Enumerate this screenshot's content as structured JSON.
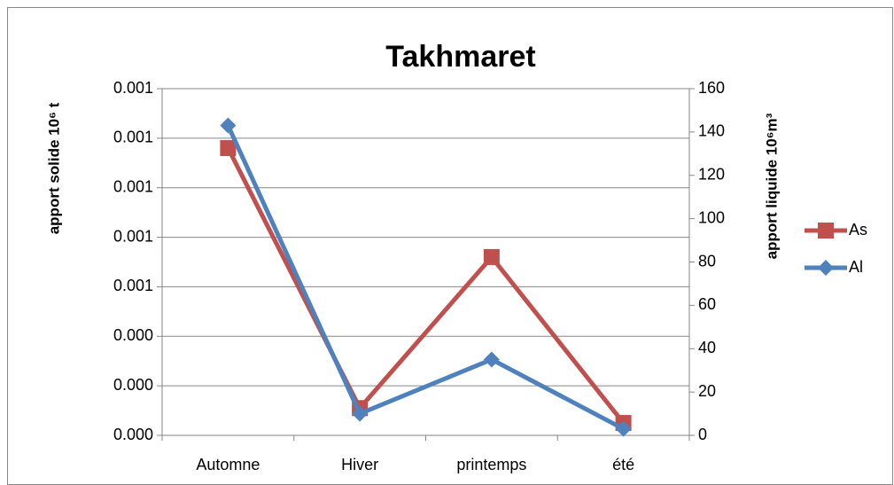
{
  "chart_data": {
    "type": "line",
    "title": "Takhmaret",
    "ylabel": "apport solide 10⁶ t",
    "y2label": "apport liquide 10⁶m³",
    "categories": [
      "Automne",
      "Hiver",
      "printemps",
      "été"
    ],
    "series": [
      {
        "name": "As",
        "color": "#c0504d",
        "marker": "square",
        "axis": "y",
        "values": [
          0.00116,
          0.00011,
          0.00072,
          5e-05
        ]
      },
      {
        "name": "Al",
        "color": "#4f81bd",
        "marker": "diamond",
        "axis": "y2",
        "values": [
          143,
          10,
          35,
          3
        ]
      }
    ],
    "ylim": [
      0,
      0.0014
    ],
    "yticks": [
      {
        "value": 0,
        "label": "0.000"
      },
      {
        "value": 0.0002,
        "label": "0.000"
      },
      {
        "value": 0.0004,
        "label": "0.000"
      },
      {
        "value": 0.0006,
        "label": "0.001"
      },
      {
        "value": 0.0008,
        "label": "0.001"
      },
      {
        "value": 0.001,
        "label": "0.001"
      },
      {
        "value": 0.0012,
        "label": "0.001"
      },
      {
        "value": 0.0014,
        "label": "0.001"
      }
    ],
    "y2lim": [
      0,
      160
    ],
    "y2ticks": [
      0,
      20,
      40,
      60,
      80,
      100,
      120,
      140,
      160
    ],
    "grid": true,
    "legend": "right"
  }
}
